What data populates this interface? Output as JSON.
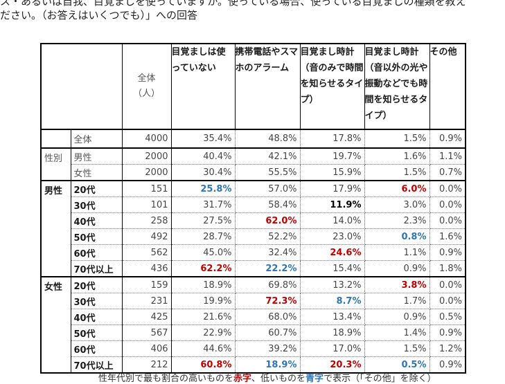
{
  "question": {
    "line1": "ス・あるいは自我、目覚ましを使っていますか。使っている場合、使っている目覚ましの種類を教え",
    "line2": "ださい。（お答えはいくつでも）」への回答"
  },
  "table": {
    "headers": {
      "total": "全体\n（人）",
      "c1": "目覚ましは使っていない",
      "c2": "携帯電話やスマホのアラーム",
      "c3": "目覚まし時計（音のみで時間を知らせるタイプ）",
      "c4": "目覚まし時計（音以外の光や振動などでも時間を知らせるタイプ）",
      "c5": "その他"
    },
    "sections": [
      {
        "group": "",
        "group_style": "none",
        "rows": [
          {
            "label": "全体",
            "n": "4000",
            "v": [
              "35.4%",
              "48.8%",
              "17.8%",
              "1.5%",
              "0.9%"
            ],
            "s": [
              "",
              "",
              "",
              "",
              ""
            ]
          }
        ]
      },
      {
        "group": "性別",
        "group_style": "gray",
        "rows": [
          {
            "label": "男性",
            "n": "2000",
            "v": [
              "40.4%",
              "42.1%",
              "19.7%",
              "1.6%",
              "1.1%"
            ],
            "s": [
              "",
              "",
              "",
              "",
              ""
            ]
          },
          {
            "label": "女性",
            "n": "2000",
            "v": [
              "30.4%",
              "55.5%",
              "15.9%",
              "1.5%",
              "0.7%"
            ],
            "s": [
              "",
              "",
              "",
              "",
              ""
            ]
          }
        ]
      },
      {
        "group": "男性",
        "group_style": "bold",
        "rows": [
          {
            "label": "20代",
            "n": "151",
            "v": [
              "25.8%",
              "57.0%",
              "17.9%",
              "6.0%",
              "0.0%"
            ],
            "s": [
              "blue",
              "",
              "",
              "red",
              ""
            ]
          },
          {
            "label": "30代",
            "n": "101",
            "v": [
              "31.7%",
              "58.4%",
              "11.9%",
              "3.0%",
              "0.0%"
            ],
            "s": [
              "",
              "",
              "strong",
              "",
              ""
            ]
          },
          {
            "label": "40代",
            "n": "258",
            "v": [
              "27.5%",
              "62.0%",
              "14.0%",
              "2.3%",
              "0.0%"
            ],
            "s": [
              "",
              "red",
              "",
              "",
              ""
            ]
          },
          {
            "label": "50代",
            "n": "492",
            "v": [
              "28.7%",
              "52.2%",
              "23.0%",
              "0.8%",
              "1.6%"
            ],
            "s": [
              "",
              "",
              "",
              "blue",
              ""
            ]
          },
          {
            "label": "60代",
            "n": "562",
            "v": [
              "45.0%",
              "32.4%",
              "24.6%",
              "1.1%",
              "0.9%"
            ],
            "s": [
              "",
              "",
              "red",
              "",
              ""
            ]
          },
          {
            "label": "70代以上",
            "n": "436",
            "v": [
              "62.2%",
              "22.2%",
              "15.4%",
              "0.9%",
              "1.8%"
            ],
            "s": [
              "red",
              "blue",
              "",
              "",
              ""
            ]
          }
        ]
      },
      {
        "group": "女性",
        "group_style": "bold",
        "rows": [
          {
            "label": "20代",
            "n": "159",
            "v": [
              "18.9%",
              "69.8%",
              "13.2%",
              "3.8%",
              "0.0%"
            ],
            "s": [
              "",
              "",
              "",
              "red",
              ""
            ]
          },
          {
            "label": "30代",
            "n": "231",
            "v": [
              "19.9%",
              "72.3%",
              "8.7%",
              "1.7%",
              "0.0%"
            ],
            "s": [
              "",
              "red",
              "blue",
              "",
              ""
            ]
          },
          {
            "label": "40代",
            "n": "425",
            "v": [
              "21.6%",
              "68.0%",
              "13.4%",
              "0.9%",
              "0.5%"
            ],
            "s": [
              "",
              "",
              "",
              "",
              ""
            ]
          },
          {
            "label": "50代",
            "n": "567",
            "v": [
              "22.9%",
              "60.7%",
              "18.9%",
              "1.4%",
              "0.9%"
            ],
            "s": [
              "",
              "",
              "",
              "",
              ""
            ]
          },
          {
            "label": "60代",
            "n": "406",
            "v": [
              "44.6%",
              "39.2%",
              "17.0%",
              "1.5%",
              "1.2%"
            ],
            "s": [
              "",
              "",
              "",
              "",
              ""
            ]
          },
          {
            "label": "70代以上",
            "n": "212",
            "v": [
              "60.8%",
              "18.9%",
              "20.3%",
              "0.5%",
              "0.9%"
            ],
            "s": [
              "red",
              "blue",
              "red",
              "blue",
              ""
            ]
          }
        ]
      }
    ]
  },
  "note": {
    "prefix": "性年代別で最も割合の高いものを",
    "red_word": "赤字",
    "middle": "、低いものを",
    "blue_word": "青字",
    "suffix": "で表示（「その他」を除く）"
  },
  "colors": {
    "high": "#c00000",
    "low": "#2e75b6"
  }
}
